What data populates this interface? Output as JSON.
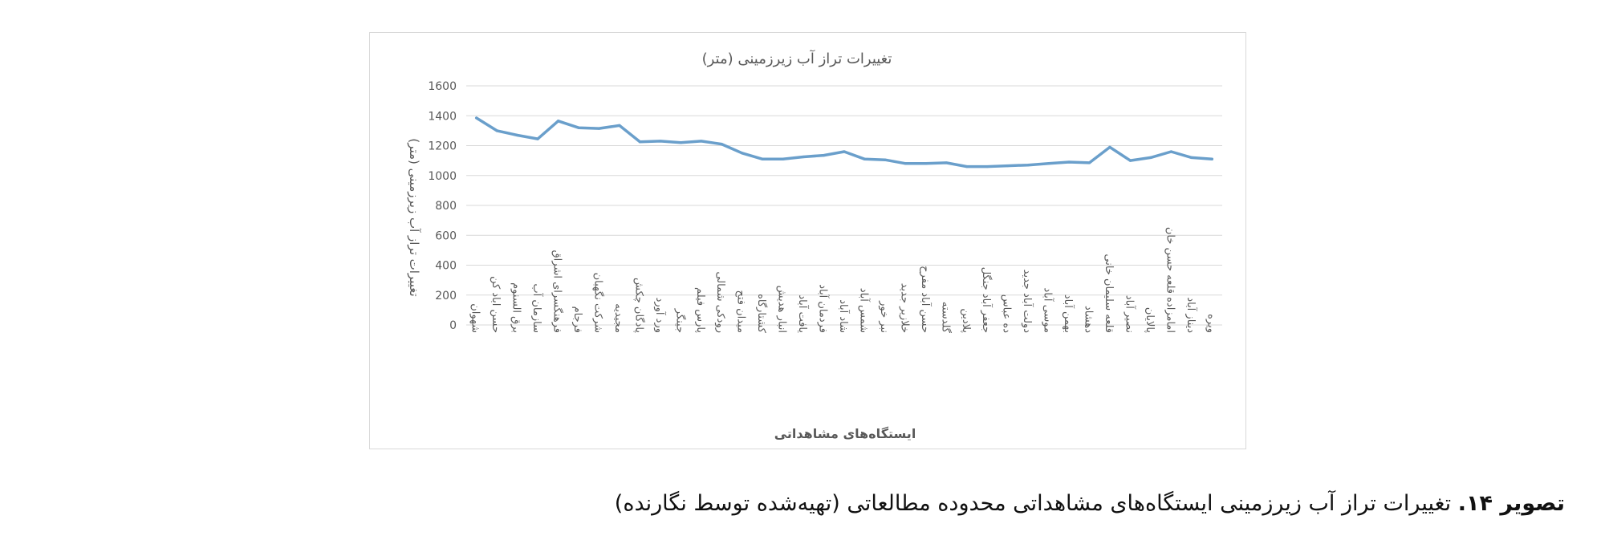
{
  "chart_data": {
    "type": "line",
    "title": "تغییرات تراز آب زیرزمینی (متر)",
    "xlabel": "ایستگاه‌های مشاهداتی",
    "ylabel": "تغییرات تراز آب زیرزمینی (متر)",
    "ylim": [
      0,
      1600
    ],
    "yticks": [
      0,
      200,
      400,
      600,
      800,
      1000,
      1200,
      1400,
      1600
    ],
    "grid": true,
    "line_color": "#6a9fcb",
    "grid_color": "#d9d9d9",
    "categories": [
      "شهوان",
      "حسن اباد کن",
      "برق السنوم",
      "سازمان آب",
      "فرهنگسرای اشراق",
      "فرجام",
      "شرکت نگهبان",
      "مجیدیه",
      "پادگان چکش",
      "ورد آورد",
      "جینگر",
      "پارس فیلم",
      "رودکی شمالی",
      "میدان فتح",
      "کشتارگاه",
      "انبار هدیش",
      "یافت آباد",
      "فردمان آباد",
      "شاد آباد",
      "شمس آباد",
      "نبر خور",
      "خلازیر جدید",
      "حسن آباد مفرح",
      "گلدسته",
      "پلادین",
      "جعفر آباد جنگل",
      "ده عباس",
      "دولت آباد جدید",
      "موسی آباد",
      "بهمن آباد",
      "دهشاد",
      "قلعه سلیمان خانی",
      "نصیر آباد",
      "پالایان",
      "امامزاده قلعه حسن خان",
      "دیناز آباد",
      "ویره"
    ],
    "series": [
      {
        "values": [
          1385,
          1300,
          1270,
          1245,
          1365,
          1320,
          1315,
          1335,
          1225,
          1230,
          1220,
          1230,
          1210,
          1150,
          1110,
          1110,
          1125,
          1135,
          1160,
          1110,
          1105,
          1080,
          1080,
          1085,
          1060,
          1060,
          1065,
          1070,
          1080,
          1090,
          1085,
          1190,
          1100,
          1120,
          1160,
          1120,
          1110
        ]
      }
    ]
  },
  "caption": {
    "prefix": "تصویر ۱۴.",
    "text": " تغییرات تراز آب زیرزمینی ایستگاه‌های مشاهداتی محدوده مطالعاتی (تهیه‌شده توسط نگارنده)"
  }
}
